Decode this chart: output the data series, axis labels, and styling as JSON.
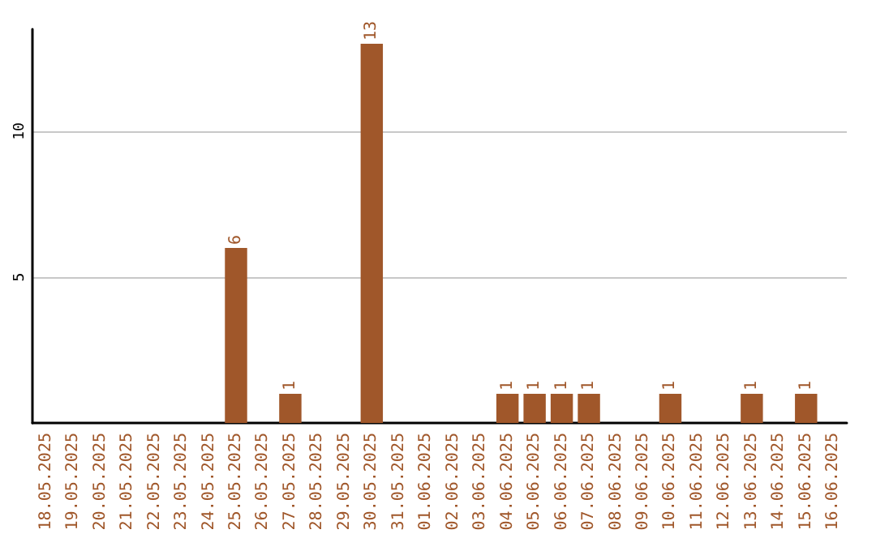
{
  "chart_data": {
    "type": "bar",
    "categories": [
      "18.05.2025",
      "19.05.2025",
      "20.05.2025",
      "21.05.2025",
      "22.05.2025",
      "23.05.2025",
      "24.05.2025",
      "25.05.2025",
      "26.05.2025",
      "27.05.2025",
      "28.05.2025",
      "29.05.2025",
      "30.05.2025",
      "31.05.2025",
      "01.06.2025",
      "02.06.2025",
      "03.06.2025",
      "04.06.2025",
      "05.06.2025",
      "06.06.2025",
      "07.06.2025",
      "08.06.2025",
      "09.06.2025",
      "10.06.2025",
      "11.06.2025",
      "12.06.2025",
      "13.06.2025",
      "14.06.2025",
      "15.06.2025",
      "16.06.2025"
    ],
    "values": [
      0,
      0,
      0,
      0,
      0,
      0,
      0,
      6,
      0,
      1,
      0,
      0,
      13,
      0,
      0,
      0,
      0,
      1,
      1,
      1,
      1,
      0,
      0,
      1,
      0,
      0,
      1,
      0,
      1,
      0
    ],
    "value_labels": [
      null,
      null,
      null,
      null,
      null,
      null,
      null,
      "6",
      null,
      "1",
      null,
      null,
      "13",
      null,
      null,
      null,
      null,
      "1",
      "1",
      "1",
      "1",
      null,
      null,
      "1",
      null,
      null,
      "1",
      null,
      "1",
      null
    ],
    "color": "#a0572a",
    "ylim": [
      0,
      13.5
    ],
    "yticks": [
      5,
      10
    ],
    "grid": "y"
  }
}
